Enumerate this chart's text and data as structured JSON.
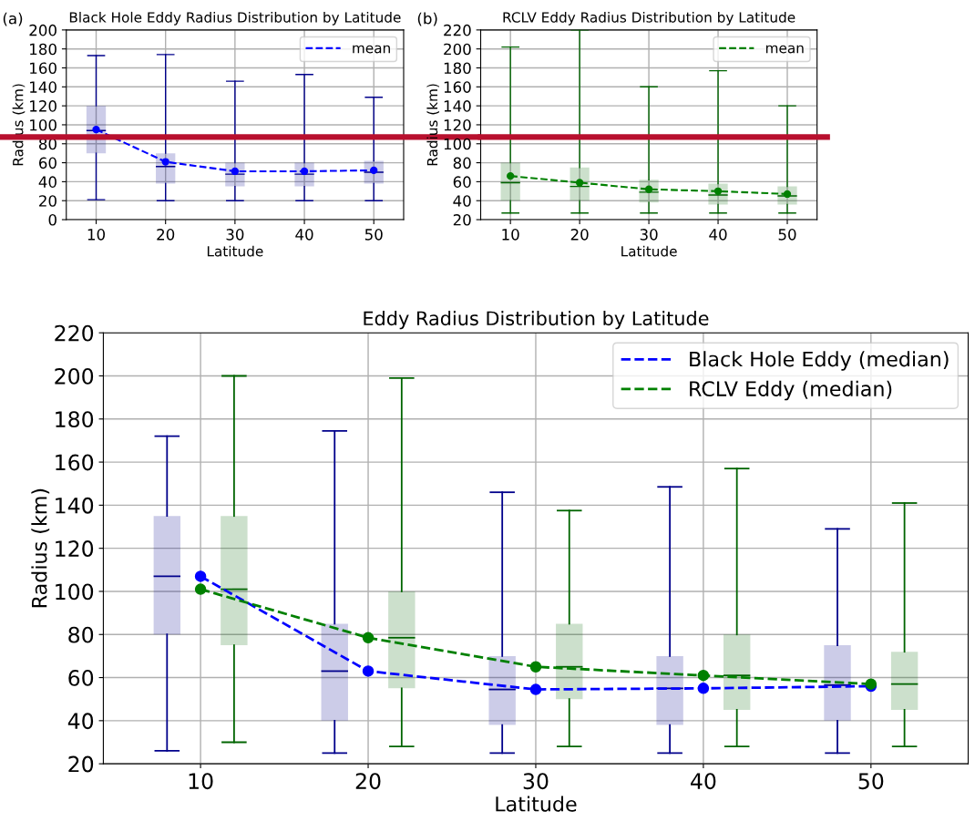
{
  "chart_data": [
    {
      "type": "box",
      "title": "Black Hole Eddy Radius Distribution by Latitude",
      "xlabel": "Latitude",
      "ylabel": "Radius (km)",
      "annotations": [
        "(a)"
      ],
      "xlim": [
        5.7,
        54.3
      ],
      "xticks": [
        10,
        20,
        30,
        40,
        50
      ],
      "ylim": [
        0,
        200
      ],
      "yticks": [
        0,
        20,
        40,
        60,
        80,
        100,
        120,
        140,
        160,
        180,
        200
      ],
      "grid": true,
      "legend": "top right",
      "series": [
        {
          "color": "#00008b",
          "x": [
            10,
            20,
            30,
            40,
            50
          ],
          "boxes": [
            {
              "low": 21,
              "q1": 70,
              "median": 94,
              "q3": 120,
              "high": 173
            },
            {
              "low": 20,
              "q1": 38,
              "median": 56,
              "q3": 70,
              "high": 174
            },
            {
              "low": 20,
              "q1": 35,
              "median": 48,
              "q3": 60,
              "high": 146
            },
            {
              "low": 20,
              "q1": 35,
              "median": 48,
              "q3": 60,
              "high": 153
            },
            {
              "low": 20,
              "q1": 38,
              "median": 50,
              "q3": 62,
              "high": 129
            }
          ]
        },
        {
          "type": "line",
          "name": "mean",
          "color": "#0000ff",
          "marker": "circle",
          "line_style": "dashed",
          "x": [
            10,
            20,
            30,
            40,
            50
          ],
          "values": [
            95,
            61,
            51,
            51,
            52
          ]
        }
      ],
      "ref_lines": [
        {
          "axis": "y",
          "value": 87,
          "color": "#b8102e"
        }
      ]
    },
    {
      "type": "box",
      "title": "RCLV Eddy Radius Distribution by Latitude",
      "xlabel": "Latitude",
      "ylabel": "Radius (km)",
      "annotations": [
        "(b)"
      ],
      "xlim": [
        5.7,
        54.3
      ],
      "xticks": [
        10,
        20,
        30,
        40,
        50
      ],
      "ylim": [
        20,
        220
      ],
      "yticks": [
        20,
        40,
        60,
        80,
        100,
        120,
        140,
        160,
        180,
        200,
        220
      ],
      "grid": true,
      "legend": "top right",
      "series": [
        {
          "color": "#006400",
          "x": [
            10,
            20,
            30,
            40,
            50
          ],
          "boxes": [
            {
              "low": 27,
              "q1": 40,
              "median": 59,
              "q3": 80,
              "high": 202
            },
            {
              "low": 27,
              "q1": 40,
              "median": 55,
              "q3": 75,
              "high": 220
            },
            {
              "low": 27,
              "q1": 38,
              "median": 49,
              "q3": 62,
              "high": 160
            },
            {
              "low": 27,
              "q1": 36,
              "median": 46,
              "q3": 58,
              "high": 177
            },
            {
              "low": 27,
              "q1": 36,
              "median": 45,
              "q3": 55,
              "high": 140
            }
          ]
        },
        {
          "type": "line",
          "name": "mean",
          "color": "#008000",
          "marker": "circle",
          "line_style": "dashed",
          "x": [
            10,
            20,
            30,
            40,
            50
          ],
          "values": [
            66,
            59,
            52,
            50,
            47
          ]
        }
      ],
      "ref_lines": [
        {
          "axis": "y",
          "value": 107,
          "color": "#b8102e"
        }
      ]
    },
    {
      "type": "box",
      "title": "Eddy Radius Distribution by Latitude",
      "xlabel": "Latitude",
      "ylabel": "Radius (km)",
      "xlim": [
        4.2,
        55.8
      ],
      "xticks": [
        10,
        20,
        30,
        40,
        50
      ],
      "ylim": [
        20,
        220
      ],
      "yticks": [
        20,
        40,
        60,
        80,
        100,
        120,
        140,
        160,
        180,
        200,
        220
      ],
      "grid": true,
      "legend": "top right",
      "series": [
        {
          "color": "#00008b",
          "x": [
            8,
            18,
            28,
            38,
            48
          ],
          "boxes": [
            {
              "low": 26,
              "q1": 80,
              "median": 107,
              "q3": 135,
              "high": 172
            },
            {
              "low": 25,
              "q1": 40,
              "median": 63,
              "q3": 85,
              "high": 174.5
            },
            {
              "low": 25,
              "q1": 38,
              "median": 54.5,
              "q3": 70,
              "high": 146
            },
            {
              "low": 25,
              "q1": 38,
              "median": 55,
              "q3": 70,
              "high": 148.5
            },
            {
              "low": 25,
              "q1": 40,
              "median": 56.5,
              "q3": 75,
              "high": 129
            }
          ]
        },
        {
          "color": "#006400",
          "x": [
            12,
            22,
            32,
            42,
            52
          ],
          "boxes": [
            {
              "low": 30,
              "q1": 75,
              "median": 101,
              "q3": 135,
              "high": 200
            },
            {
              "low": 28,
              "q1": 55,
              "median": 78.5,
              "q3": 100,
              "high": 199
            },
            {
              "low": 28,
              "q1": 50,
              "median": 65,
              "q3": 85,
              "high": 137.5
            },
            {
              "low": 28,
              "q1": 45,
              "median": 61,
              "q3": 80,
              "high": 157
            },
            {
              "low": 28,
              "q1": 45,
              "median": 57,
              "q3": 72,
              "high": 141
            }
          ]
        },
        {
          "type": "line",
          "name": "Black Hole Eddy (median)",
          "color": "#0000ff",
          "marker": "circle",
          "line_style": "dashed",
          "x": [
            10,
            20,
            30,
            40,
            50
          ],
          "values": [
            107,
            63,
            54.5,
            55,
            56
          ]
        },
        {
          "type": "line",
          "name": "RCLV Eddy (median)",
          "color": "#008000",
          "marker": "circle",
          "line_style": "dashed",
          "x": [
            10,
            20,
            30,
            40,
            50
          ],
          "values": [
            101,
            78.5,
            65,
            61,
            57
          ]
        }
      ]
    }
  ]
}
